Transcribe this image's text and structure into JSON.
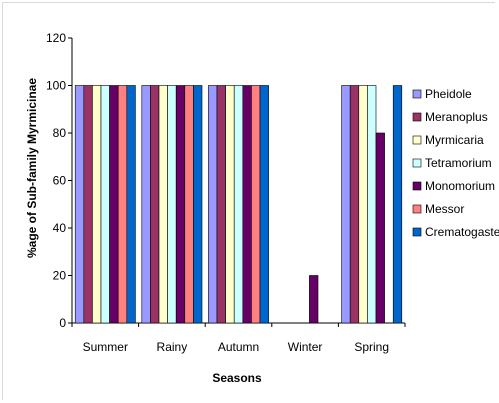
{
  "chart_data": {
    "type": "bar",
    "title": "",
    "xlabel": "Seasons",
    "ylabel": "%age of Sub-family Myrmicinae",
    "ylim": [
      0,
      120
    ],
    "yticks": [
      0,
      20,
      40,
      60,
      80,
      100,
      120
    ],
    "categories": [
      "Summer",
      "Rainy",
      "Autumn",
      "Winter",
      "Spring"
    ],
    "grid": false,
    "legend": "right",
    "series": [
      {
        "name": "Pheidole",
        "color": "#9999ff",
        "values": [
          100,
          100,
          100,
          0,
          100
        ]
      },
      {
        "name": "Meranoplus",
        "color": "#993366",
        "values": [
          100,
          100,
          100,
          0,
          100
        ]
      },
      {
        "name": "Myrmicaria",
        "color": "#ffffcc",
        "values": [
          100,
          100,
          100,
          0,
          100
        ]
      },
      {
        "name": "Tetramorium",
        "color": "#ccffff",
        "values": [
          100,
          100,
          100,
          0,
          100
        ]
      },
      {
        "name": "Monomorium",
        "color": "#660066",
        "values": [
          100,
          100,
          100,
          20,
          80
        ]
      },
      {
        "name": "Messor",
        "color": "#ff8080",
        "values": [
          100,
          100,
          100,
          0,
          0
        ]
      },
      {
        "name": "Crematogaster",
        "color": "#0066cc",
        "values": [
          100,
          100,
          100,
          0,
          100
        ]
      }
    ]
  }
}
